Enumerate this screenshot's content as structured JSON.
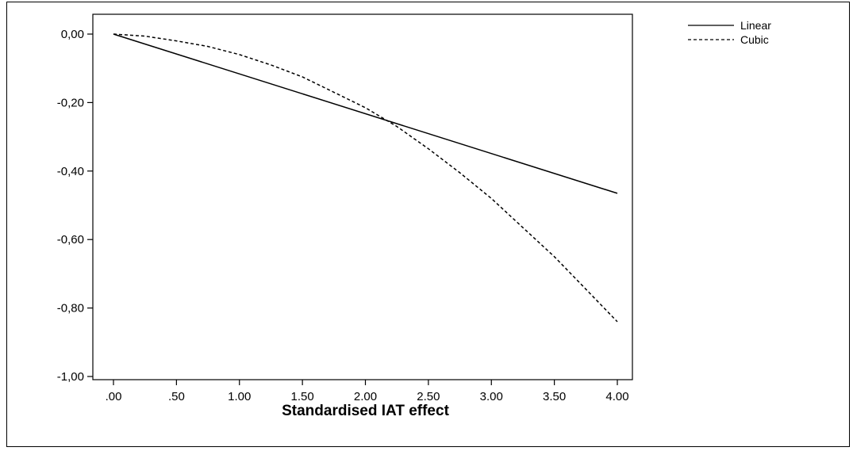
{
  "chart_data": {
    "type": "line",
    "title": "",
    "xlabel": "Standardised IAT effect",
    "ylabel": "",
    "xlim": [
      0,
      4
    ],
    "ylim": [
      -1,
      0
    ],
    "x_ticks": [
      ".00",
      ".50",
      "1.00",
      "1.50",
      "2.00",
      "2.50",
      "3.00",
      "3.50",
      "4.00"
    ],
    "x_tick_values": [
      0,
      0.5,
      1,
      1.5,
      2,
      2.5,
      3,
      3.5,
      4
    ],
    "y_ticks": [
      "0,00",
      "-0,20",
      "-0,40",
      "-0,60",
      "-0,80",
      "-1,00"
    ],
    "y_tick_values": [
      0,
      -0.2,
      -0.4,
      -0.6,
      -0.8,
      -1.0
    ],
    "grid": false,
    "legend_position": "top-right",
    "series": [
      {
        "name": "Linear",
        "style": "solid",
        "x": [
          0,
          4
        ],
        "y": [
          0,
          -0.465
        ]
      },
      {
        "name": "Cubic",
        "style": "dashed",
        "x": [
          0,
          0.25,
          0.5,
          0.75,
          1.0,
          1.25,
          1.5,
          1.75,
          2.0,
          2.25,
          2.5,
          2.75,
          3.0,
          3.25,
          3.5,
          3.75,
          4.0
        ],
        "y": [
          0,
          -0.006,
          -0.02,
          -0.036,
          -0.06,
          -0.09,
          -0.125,
          -0.17,
          -0.215,
          -0.27,
          -0.335,
          -0.405,
          -0.48,
          -0.565,
          -0.65,
          -0.745,
          -0.84
        ]
      }
    ],
    "colors": {
      "line": "#000000",
      "axis": "#000000"
    }
  }
}
